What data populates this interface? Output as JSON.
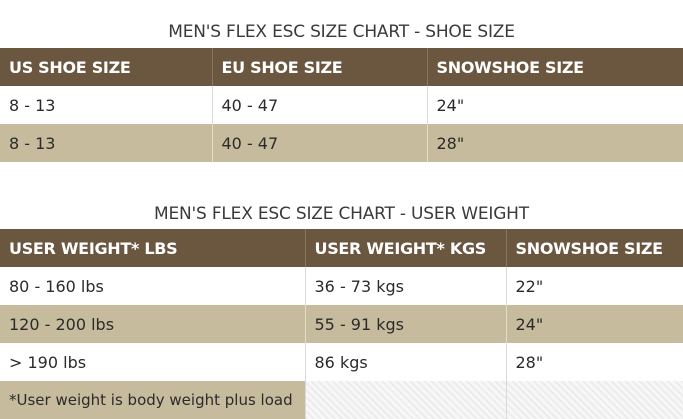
{
  "shoe_chart": {
    "title": "MEN'S FLEX ESC SIZE CHART - SHOE SIZE",
    "headers": [
      "US SHOE SIZE",
      "EU SHOE SIZE",
      "SNOWSHOE SIZE"
    ],
    "rows": [
      [
        "8 - 13",
        "40 - 47",
        "24\""
      ],
      [
        "8 - 13",
        "40 - 47",
        "28\""
      ]
    ]
  },
  "weight_chart": {
    "title": "MEN'S FLEX ESC SIZE CHART - USER WEIGHT",
    "headers": [
      "USER WEIGHT* LBS",
      "USER WEIGHT* KGS",
      "SNOWSHOE SIZE"
    ],
    "rows": [
      [
        "80 - 160 lbs",
        "36 - 73 kgs",
        "22\""
      ],
      [
        "120 - 200 lbs",
        "55 - 91 kgs",
        "24\""
      ],
      [
        "> 190 lbs",
        "86 kgs",
        "28\""
      ]
    ],
    "footnote": "*User weight is body weight plus load"
  },
  "colors": {
    "header_bg": "#6b5640",
    "alt_row_bg": "#c6bb9c",
    "row_bg": "#ffffff"
  }
}
